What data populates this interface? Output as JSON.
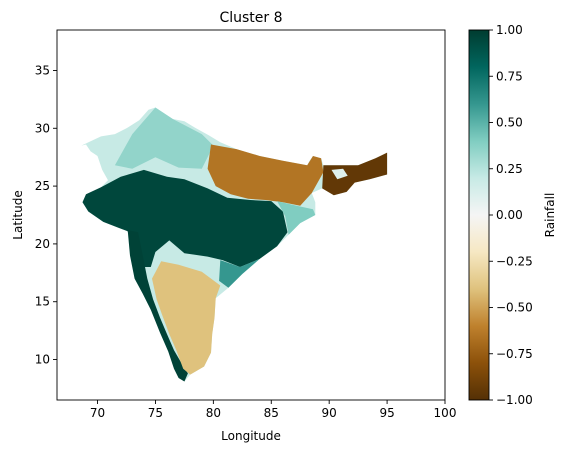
{
  "chart_data": {
    "type": "heatmap",
    "title": "Cluster 8",
    "xlabel": "Longitude",
    "ylabel": "Latitude",
    "xlim": [
      66.5,
      100
    ],
    "ylim": [
      6.5,
      38.5
    ],
    "x_ticks": [
      70,
      75,
      80,
      85,
      90,
      95,
      100
    ],
    "y_ticks": [
      10,
      15,
      20,
      25,
      30,
      35
    ],
    "colorbar": {
      "label": "Rainfall",
      "range": [
        -1.0,
        1.0
      ],
      "ticks": [
        -1.0,
        -0.75,
        -0.5,
        -0.25,
        0.0,
        0.25,
        0.5,
        0.75,
        1.0
      ],
      "tick_labels": [
        "−1.00",
        "−0.75",
        "−0.50",
        "−0.25",
        "0.00",
        "0.25",
        "0.50",
        "0.75",
        "1.00"
      ],
      "colormap": "BrBG",
      "stops": [
        "#543005",
        "#8c510a",
        "#bf812d",
        "#dfc27d",
        "#f6e8c3",
        "#f5f5f5",
        "#c7eae5",
        "#80cdc1",
        "#35978f",
        "#01665e",
        "#003c30"
      ]
    },
    "regions": [
      {
        "name": "Indian subcontinent outline",
        "value": 0.2,
        "lonlat": [
          [
            75.0,
            31.8
          ],
          [
            75.6,
            31.4
          ],
          [
            76.5,
            30.8
          ],
          [
            77.5,
            30.6
          ],
          [
            78.5,
            30.0
          ],
          [
            79.6,
            29.4
          ],
          [
            80.6,
            28.8
          ],
          [
            82.0,
            28.2
          ],
          [
            84.0,
            27.6
          ],
          [
            86.0,
            27.2
          ],
          [
            88.1,
            26.8
          ],
          [
            88.3,
            27.2
          ],
          [
            88.6,
            27.6
          ],
          [
            89.3,
            27.4
          ],
          [
            89.5,
            26.8
          ],
          [
            91.0,
            26.8
          ],
          [
            92.5,
            26.8
          ],
          [
            94.0,
            27.4
          ],
          [
            95.0,
            27.9
          ],
          [
            95.0,
            26.0
          ],
          [
            93.5,
            25.6
          ],
          [
            92.2,
            25.3
          ],
          [
            91.5,
            24.5
          ],
          [
            90.4,
            24.2
          ],
          [
            89.4,
            24.8
          ],
          [
            88.5,
            24.4
          ],
          [
            88.8,
            23.6
          ],
          [
            88.8,
            22.5
          ],
          [
            87.5,
            21.8
          ],
          [
            86.5,
            20.8
          ],
          [
            85.5,
            19.8
          ],
          [
            84.0,
            18.7
          ],
          [
            82.5,
            17.4
          ],
          [
            81.3,
            16.2
          ],
          [
            80.2,
            15.3
          ],
          [
            80.1,
            13.6
          ],
          [
            79.9,
            12.2
          ],
          [
            79.8,
            10.6
          ],
          [
            79.2,
            9.4
          ],
          [
            78.0,
            8.7
          ],
          [
            77.5,
            8.1
          ],
          [
            77.0,
            8.4
          ],
          [
            76.6,
            9.2
          ],
          [
            76.1,
            10.7
          ],
          [
            75.4,
            12.3
          ],
          [
            74.6,
            14.3
          ],
          [
            73.9,
            15.7
          ],
          [
            73.2,
            17.0
          ],
          [
            72.8,
            19.0
          ],
          [
            72.6,
            21.1
          ],
          [
            71.8,
            21.4
          ],
          [
            70.5,
            21.9
          ],
          [
            69.2,
            22.8
          ],
          [
            68.7,
            23.6
          ],
          [
            69.0,
            24.3
          ],
          [
            70.0,
            24.6
          ],
          [
            70.9,
            25.5
          ],
          [
            70.4,
            26.4
          ],
          [
            70.0,
            27.6
          ],
          [
            69.4,
            28.0
          ],
          [
            69.0,
            28.6
          ],
          [
            68.6,
            28.5
          ],
          [
            70.3,
            29.3
          ],
          [
            71.5,
            29.5
          ],
          [
            72.5,
            30.0
          ],
          [
            73.6,
            30.7
          ],
          [
            74.4,
            31.6
          ],
          [
            75.0,
            31.8
          ]
        ]
      },
      {
        "name": "north-west Gangetic plain / Himalaya foothills",
        "value": 0.35,
        "lonlat": [
          [
            71.5,
            26.8
          ],
          [
            73.0,
            29.5
          ],
          [
            75.0,
            31.8
          ],
          [
            76.5,
            30.8
          ],
          [
            79.0,
            29.5
          ],
          [
            80.0,
            28.5
          ],
          [
            79.0,
            26.5
          ],
          [
            77.0,
            26.6
          ],
          [
            75.0,
            27.5
          ],
          [
            73.0,
            26.5
          ]
        ]
      },
      {
        "name": "Indo-Gangetic dry belt",
        "value": -0.65,
        "lonlat": [
          [
            79.8,
            28.6
          ],
          [
            82.0,
            28.2
          ],
          [
            84.0,
            27.6
          ],
          [
            86.0,
            27.2
          ],
          [
            88.1,
            26.8
          ],
          [
            88.6,
            27.6
          ],
          [
            89.3,
            27.4
          ],
          [
            89.5,
            26.2
          ],
          [
            88.5,
            24.4
          ],
          [
            87.5,
            23.3
          ],
          [
            86.0,
            23.6
          ],
          [
            84.5,
            23.8
          ],
          [
            83.0,
            23.9
          ],
          [
            81.5,
            24.3
          ],
          [
            80.2,
            25.0
          ],
          [
            79.5,
            26.5
          ]
        ]
      },
      {
        "name": "north-east dry region",
        "value": -0.95,
        "lonlat": [
          [
            89.5,
            26.8
          ],
          [
            91.0,
            26.8
          ],
          [
            92.5,
            26.8
          ],
          [
            94.0,
            27.4
          ],
          [
            95.0,
            27.9
          ],
          [
            95.0,
            26.0
          ],
          [
            93.5,
            25.6
          ],
          [
            92.2,
            25.3
          ],
          [
            91.5,
            24.5
          ],
          [
            90.4,
            24.2
          ],
          [
            89.4,
            24.8
          ]
        ]
      },
      {
        "name": "north-east moist patch",
        "value": 0.1,
        "lonlat": [
          [
            90.2,
            26.4
          ],
          [
            91.2,
            26.5
          ],
          [
            91.6,
            25.9
          ],
          [
            90.7,
            25.6
          ]
        ]
      },
      {
        "name": "central India wet core",
        "value": 0.95,
        "lonlat": [
          [
            69.0,
            24.3
          ],
          [
            70.3,
            24.9
          ],
          [
            72.0,
            25.8
          ],
          [
            74.0,
            26.4
          ],
          [
            76.0,
            25.8
          ],
          [
            77.5,
            25.6
          ],
          [
            79.5,
            24.8
          ],
          [
            81.2,
            24.0
          ],
          [
            83.2,
            23.8
          ],
          [
            85.0,
            23.7
          ],
          [
            86.0,
            22.8
          ],
          [
            86.4,
            21.0
          ],
          [
            85.5,
            19.8
          ],
          [
            84.0,
            18.7
          ],
          [
            82.3,
            18.0
          ],
          [
            80.8,
            18.6
          ],
          [
            79.5,
            18.9
          ],
          [
            77.5,
            19.2
          ],
          [
            76.2,
            20.3
          ],
          [
            75.0,
            19.3
          ],
          [
            74.6,
            18.0
          ],
          [
            73.6,
            18.0
          ],
          [
            73.0,
            19.5
          ],
          [
            72.6,
            21.1
          ],
          [
            71.8,
            21.4
          ],
          [
            70.5,
            21.9
          ],
          [
            69.2,
            22.8
          ],
          [
            68.7,
            23.6
          ]
        ]
      },
      {
        "name": "western ghats coastal strip",
        "value": 0.97,
        "lonlat": [
          [
            72.6,
            21.2
          ],
          [
            73.5,
            21.0
          ],
          [
            74.0,
            18.5
          ],
          [
            74.3,
            17.0
          ],
          [
            74.8,
            15.2
          ],
          [
            75.4,
            13.6
          ],
          [
            76.0,
            12.2
          ],
          [
            76.6,
            10.8
          ],
          [
            77.3,
            9.6
          ],
          [
            77.8,
            8.8
          ],
          [
            77.5,
            8.1
          ],
          [
            77.0,
            8.4
          ],
          [
            76.6,
            9.2
          ],
          [
            76.1,
            10.7
          ],
          [
            75.4,
            12.3
          ],
          [
            74.6,
            14.3
          ],
          [
            73.9,
            15.7
          ],
          [
            73.2,
            17.0
          ],
          [
            72.8,
            19.0
          ]
        ]
      },
      {
        "name": "Deccan rain-shadow plateau",
        "value": -0.4,
        "lonlat": [
          [
            75.5,
            18.5
          ],
          [
            77.0,
            18.2
          ],
          [
            79.0,
            17.6
          ],
          [
            80.6,
            16.4
          ],
          [
            80.2,
            15.3
          ],
          [
            80.1,
            13.6
          ],
          [
            79.9,
            12.2
          ],
          [
            79.8,
            10.6
          ],
          [
            79.2,
            9.4
          ],
          [
            78.0,
            8.7
          ],
          [
            77.4,
            9.2
          ],
          [
            76.8,
            10.8
          ],
          [
            76.2,
            12.2
          ],
          [
            75.6,
            13.8
          ],
          [
            75.1,
            15.2
          ],
          [
            74.7,
            17.0
          ]
        ]
      },
      {
        "name": "east coast transition",
        "value": 0.6,
        "lonlat": [
          [
            80.6,
            18.6
          ],
          [
            82.3,
            18.0
          ],
          [
            84.0,
            18.7
          ],
          [
            82.5,
            17.4
          ],
          [
            81.3,
            16.2
          ],
          [
            80.5,
            16.8
          ]
        ]
      },
      {
        "name": "lower Bengal transition",
        "value": 0.4,
        "lonlat": [
          [
            85.5,
            23.7
          ],
          [
            87.2,
            23.3
          ],
          [
            88.6,
            23.0
          ],
          [
            88.8,
            22.5
          ],
          [
            87.5,
            21.8
          ],
          [
            86.5,
            20.8
          ],
          [
            86.2,
            22.4
          ]
        ]
      }
    ]
  }
}
